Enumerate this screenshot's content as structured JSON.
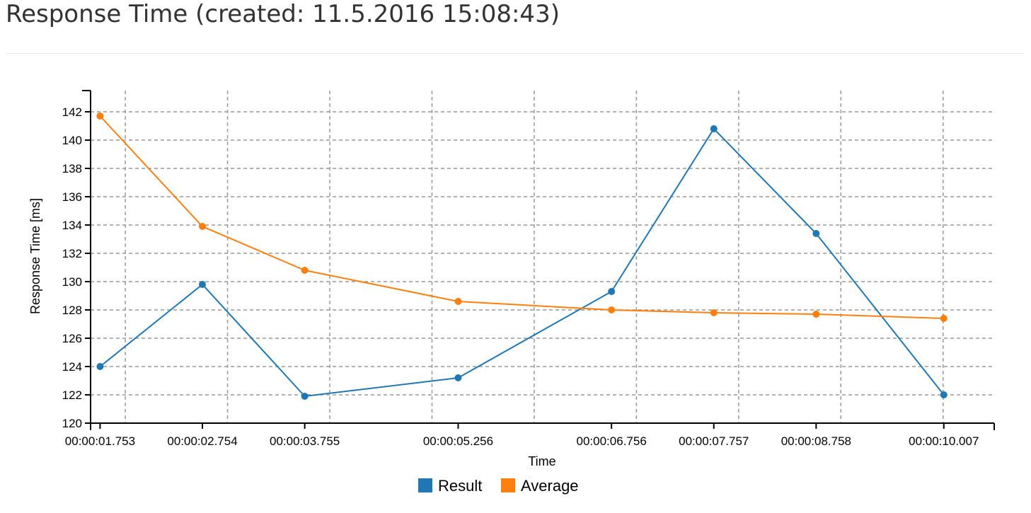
{
  "page": {
    "title": "Response Time (created: 11.5.2016 15:08:43)"
  },
  "colors": {
    "result": "#1f77b4",
    "average": "#ff7f0e",
    "grid": "#999999",
    "axis": "#000000"
  },
  "chart_data": {
    "type": "line",
    "xlabel": "Time",
    "ylabel": "Response Time [ms]",
    "x_tick_labels": [
      "00:00:01.753",
      "00:00:02.754",
      "00:00:03.755",
      "00:00:05.256",
      "00:00:06.756",
      "00:00:07.757",
      "00:00:08.758",
      "00:00:10.007"
    ],
    "x_seconds": [
      1.753,
      2.754,
      3.755,
      5.256,
      6.756,
      7.757,
      8.758,
      10.007
    ],
    "xlim": [
      1.66,
      10.5
    ],
    "ylim": [
      120,
      143.5
    ],
    "y_ticks": [
      120,
      122,
      124,
      126,
      128,
      130,
      132,
      134,
      136,
      138,
      140,
      142
    ],
    "x_grid_seconds": [
      2.0,
      3.0,
      4.0,
      5.0,
      6.0,
      7.0,
      8.0,
      9.0,
      10.0
    ],
    "grid": true,
    "legend_position": "bottom-center",
    "series": [
      {
        "name": "Result",
        "values": [
          124.0,
          129.8,
          121.9,
          123.2,
          129.3,
          140.8,
          133.4,
          122.0
        ]
      },
      {
        "name": "Average",
        "values": [
          141.7,
          133.9,
          130.8,
          128.6,
          128.0,
          127.8,
          127.7,
          127.4
        ]
      }
    ]
  }
}
